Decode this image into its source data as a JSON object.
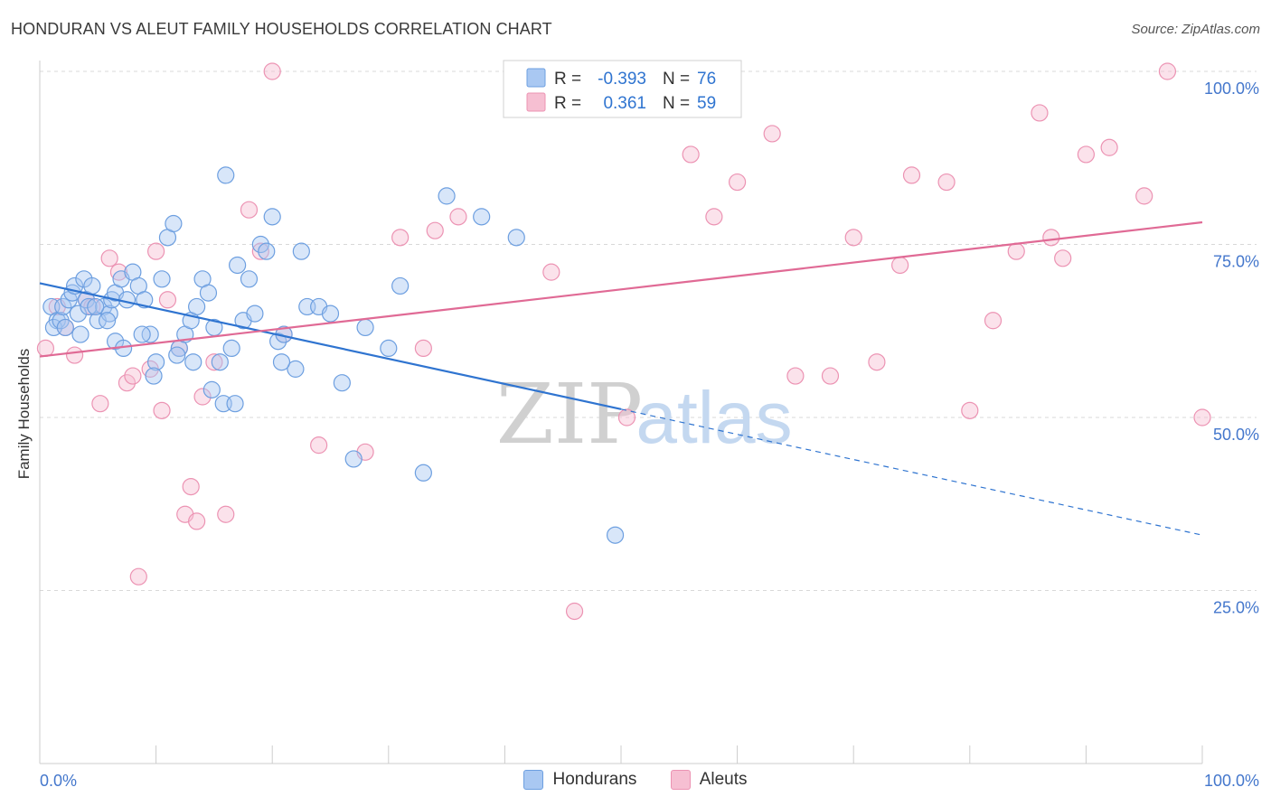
{
  "header": {
    "title": "HONDURAN VS ALEUT FAMILY HOUSEHOLDS CORRELATION CHART",
    "source": "Source: ZipAtlas.com"
  },
  "watermark": {
    "zip": "ZIP",
    "atlas": "atlas"
  },
  "colors": {
    "blue": "#2f74d0",
    "blue_fill": "#a9c8f2",
    "blue_stroke": "#6d9fe0",
    "pink": "#e06a95",
    "pink_fill": "#f6bfd2",
    "pink_stroke": "#ec93b3",
    "tick_label": "#4477cc",
    "grid": "#d8d8d8"
  },
  "chart_data": {
    "type": "scatter",
    "xlabel": "",
    "ylabel": "Family Households",
    "xlim": [
      0,
      100
    ],
    "ylim": [
      0,
      100
    ],
    "x_tick_labels": {
      "left": "0.0%",
      "right": "100.0%"
    },
    "y_ticks": [
      {
        "value": 100,
        "label": "100.0%"
      },
      {
        "value": 75,
        "label": "75.0%"
      },
      {
        "value": 50,
        "label": "50.0%"
      },
      {
        "value": 25,
        "label": "25.0%"
      }
    ],
    "legend_box": {
      "rows": [
        {
          "r_label": "R =",
          "r_value": "-0.393",
          "n_label": "N =",
          "n_value": "76"
        },
        {
          "r_label": "R =",
          "r_value": "0.361",
          "n_label": "N =",
          "n_value": "59"
        }
      ]
    },
    "series": [
      {
        "name": "Hondurans",
        "trend": {
          "x0": 0,
          "y0": 69.4,
          "x1": 50,
          "y1": 51.2,
          "dashed_to_x": 100,
          "dashed_to_y": 33.0
        },
        "points": [
          [
            1.0,
            66
          ],
          [
            1.5,
            64
          ],
          [
            1.2,
            63
          ],
          [
            1.8,
            64
          ],
          [
            2.0,
            66
          ],
          [
            2.5,
            67
          ],
          [
            2.8,
            68
          ],
          [
            3.0,
            69
          ],
          [
            3.3,
            65
          ],
          [
            3.8,
            70
          ],
          [
            4.0,
            67
          ],
          [
            4.2,
            66
          ],
          [
            4.5,
            69
          ],
          [
            5.0,
            64
          ],
          [
            5.5,
            66
          ],
          [
            6.0,
            65
          ],
          [
            6.2,
            67
          ],
          [
            6.5,
            68
          ],
          [
            7.0,
            70
          ],
          [
            7.5,
            67
          ],
          [
            8.0,
            71
          ],
          [
            8.5,
            69
          ],
          [
            9.0,
            67
          ],
          [
            9.5,
            62
          ],
          [
            10,
            58
          ],
          [
            10.5,
            70
          ],
          [
            11,
            76
          ],
          [
            11.5,
            78
          ],
          [
            12,
            60
          ],
          [
            12.5,
            62
          ],
          [
            13,
            64
          ],
          [
            13.5,
            66
          ],
          [
            14,
            70
          ],
          [
            14.5,
            68
          ],
          [
            15,
            63
          ],
          [
            15.5,
            58
          ],
          [
            16,
            85
          ],
          [
            16.5,
            60
          ],
          [
            17,
            72
          ],
          [
            17.5,
            64
          ],
          [
            18,
            70
          ],
          [
            18.5,
            65
          ],
          [
            19,
            75
          ],
          [
            19.5,
            74
          ],
          [
            20,
            79
          ],
          [
            20.5,
            61
          ],
          [
            21,
            62
          ],
          [
            22,
            57
          ],
          [
            22.5,
            74
          ],
          [
            23,
            66
          ],
          [
            24,
            66
          ],
          [
            25,
            65
          ],
          [
            26,
            55
          ],
          [
            27,
            44
          ],
          [
            28,
            63
          ],
          [
            30,
            60
          ],
          [
            31,
            69
          ],
          [
            33,
            42
          ],
          [
            35,
            82
          ],
          [
            38,
            79
          ],
          [
            41,
            76
          ],
          [
            6.5,
            61
          ],
          [
            7.2,
            60
          ],
          [
            3.5,
            62
          ],
          [
            2.2,
            63
          ],
          [
            5.8,
            64
          ],
          [
            4.8,
            66
          ],
          [
            8.8,
            62
          ],
          [
            9.8,
            56
          ],
          [
            11.8,
            59
          ],
          [
            13.2,
            58
          ],
          [
            14.8,
            54
          ],
          [
            15.8,
            52
          ],
          [
            16.8,
            52
          ],
          [
            20.8,
            58
          ],
          [
            49.5,
            33
          ]
        ]
      },
      {
        "name": "Aleuts",
        "trend": {
          "x0": 0,
          "y0": 58.8,
          "x1": 100,
          "y1": 78.2
        },
        "points": [
          [
            0.5,
            60
          ],
          [
            1.5,
            66
          ],
          [
            2.2,
            63
          ],
          [
            3.0,
            59
          ],
          [
            4.0,
            67
          ],
          [
            4.5,
            66
          ],
          [
            5.2,
            52
          ],
          [
            6.0,
            73
          ],
          [
            6.8,
            71
          ],
          [
            7.5,
            55
          ],
          [
            8.0,
            56
          ],
          [
            8.5,
            27
          ],
          [
            9.5,
            57
          ],
          [
            10.0,
            74
          ],
          [
            10.5,
            51
          ],
          [
            11.0,
            67
          ],
          [
            12.0,
            60
          ],
          [
            12.5,
            36
          ],
          [
            13.0,
            40
          ],
          [
            13.5,
            35
          ],
          [
            14.0,
            53
          ],
          [
            15.0,
            58
          ],
          [
            16.0,
            36
          ],
          [
            18.0,
            80
          ],
          [
            19.0,
            74
          ],
          [
            20.0,
            100
          ],
          [
            21.0,
            62
          ],
          [
            24.0,
            46
          ],
          [
            28.0,
            45
          ],
          [
            31.0,
            76
          ],
          [
            33.0,
            60
          ],
          [
            34.0,
            77
          ],
          [
            36.0,
            79
          ],
          [
            44.0,
            71
          ],
          [
            46.0,
            22
          ],
          [
            50.5,
            50
          ],
          [
            53.0,
            100
          ],
          [
            56.0,
            88
          ],
          [
            58.0,
            79
          ],
          [
            60.0,
            84
          ],
          [
            63.0,
            91
          ],
          [
            65.0,
            56
          ],
          [
            68.0,
            56
          ],
          [
            70.0,
            76
          ],
          [
            72.0,
            58
          ],
          [
            74.0,
            72
          ],
          [
            75.0,
            85
          ],
          [
            78.0,
            84
          ],
          [
            80.0,
            51
          ],
          [
            82.0,
            64
          ],
          [
            84.0,
            74
          ],
          [
            86.0,
            94
          ],
          [
            87.0,
            76
          ],
          [
            88.0,
            73
          ],
          [
            90.0,
            88
          ],
          [
            92.0,
            89
          ],
          [
            95.0,
            82
          ],
          [
            97.0,
            100
          ],
          [
            100.0,
            50
          ]
        ]
      }
    ]
  },
  "legend_bottom": {
    "items": [
      "Hondurans",
      "Aleuts"
    ]
  }
}
